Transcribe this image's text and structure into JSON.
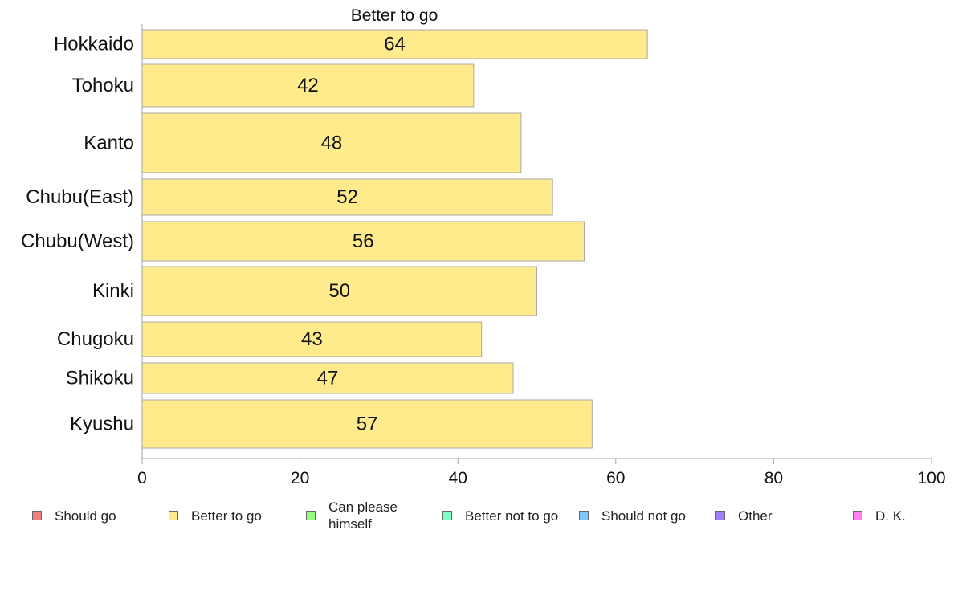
{
  "chart_data": {
    "type": "bar",
    "orientation": "horizontal",
    "title": "Better to go",
    "categories": [
      "Hokkaido",
      "Tohoku",
      "Kanto",
      "Chubu(East)",
      "Chubu(West)",
      "Kinki",
      "Chugoku",
      "Shikoku",
      "Kyushu"
    ],
    "series": [
      {
        "name": "Better to go",
        "color": "#FFEB8C",
        "values": [
          64,
          42,
          48,
          52,
          56,
          50,
          43,
          47,
          57
        ],
        "labels": [
          "64",
          "42",
          "48",
          "52",
          "56",
          "50",
          "43",
          "47",
          "57"
        ]
      }
    ],
    "xlim": [
      0,
      100
    ],
    "xticks": [
      0,
      20,
      40,
      60,
      80,
      100
    ],
    "xlabel": "",
    "ylabel": "",
    "grid": false,
    "legend": {
      "position": "bottom",
      "entries": [
        {
          "label": "Should go",
          "color": "#F08080"
        },
        {
          "label": "Better to go",
          "color": "#FFEB8C"
        },
        {
          "label": "Can please\nhimself",
          "color": "#98FB80"
        },
        {
          "label": "Better not to go",
          "color": "#80FFC8"
        },
        {
          "label": "Should not go",
          "color": "#80C8FF"
        },
        {
          "label": "Other",
          "color": "#A080FF"
        },
        {
          "label": "D. K.",
          "color": "#FF80F0"
        }
      ]
    }
  }
}
